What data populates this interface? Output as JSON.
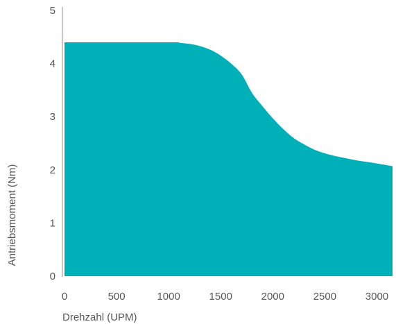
{
  "chart_data": {
    "type": "area",
    "title": "",
    "xlabel": "Drehzahl (UPM)",
    "ylabel": "Antriebsmoment (Nm)",
    "xlim": [
      0,
      3150
    ],
    "ylim": [
      0,
      5
    ],
    "xticks": [
      0,
      500,
      1000,
      1500,
      2000,
      2500,
      3000
    ],
    "yticks": [
      0,
      1,
      2,
      3,
      4,
      5
    ],
    "grid": false,
    "legend": "none",
    "color": "#00B0B9",
    "axis_color": "#c8c8c8",
    "series": [
      {
        "x": [
          0,
          1000,
          1100,
          1200,
          1300,
          1400,
          1500,
          1600,
          1700,
          1800,
          1900,
          2000,
          2100,
          2200,
          2300,
          2400,
          2500,
          2600,
          2700,
          2800,
          2900,
          3000,
          3150
        ],
        "values": [
          4.4,
          4.4,
          4.39,
          4.37,
          4.33,
          4.26,
          4.15,
          4.0,
          3.8,
          3.45,
          3.2,
          2.97,
          2.77,
          2.6,
          2.48,
          2.38,
          2.31,
          2.26,
          2.22,
          2.18,
          2.15,
          2.12,
          2.07
        ]
      }
    ]
  }
}
